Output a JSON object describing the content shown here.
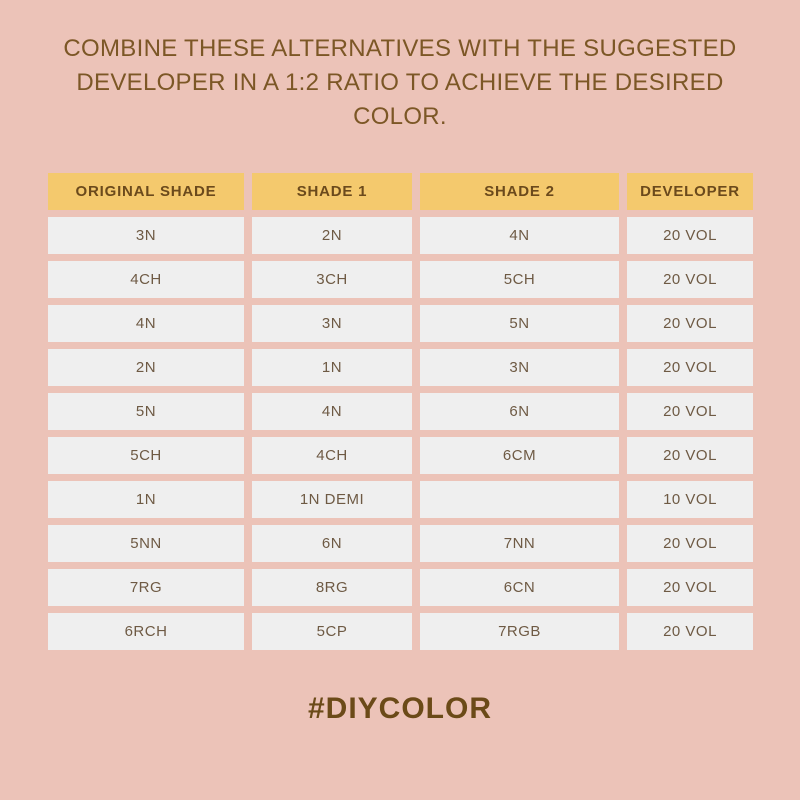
{
  "title_lines": [
    "COMBINE THESE ALTERNATIVES WITH THE SUGGESTED",
    "DEVELOPER IN A 1:2 RATIO TO ACHIEVE THE DESIRED",
    "COLOR."
  ],
  "table": {
    "headers": [
      "ORIGINAL SHADE",
      "SHADE 1",
      "SHADE 2",
      "DEVELOPER"
    ],
    "rows": [
      [
        "3N",
        "2N",
        "4N",
        "20 VOL"
      ],
      [
        "4CH",
        "3CH",
        "5CH",
        "20 VOL"
      ],
      [
        "4N",
        "3N",
        "5N",
        "20 VOL"
      ],
      [
        "2N",
        "1N",
        "3N",
        "20 VOL"
      ],
      [
        "5N",
        "4N",
        "6N",
        "20 VOL"
      ],
      [
        "5CH",
        "4CH",
        "6CM",
        "20 VOL"
      ],
      [
        "1N",
        "1N DEMI",
        "",
        "10 VOL"
      ],
      [
        "5NN",
        "6N",
        "7NN",
        "20 VOL"
      ],
      [
        "7RG",
        "8RG",
        "6CN",
        "20 VOL"
      ],
      [
        "6RCH",
        "5CP",
        "7RGB",
        "20 VOL"
      ]
    ]
  },
  "hashtag": "#DIYCOLOR",
  "colors": {
    "background": "#ecc3b8",
    "header": "#f4c96d",
    "cell": "#efefef",
    "text_brown": "#6b4a1c"
  }
}
